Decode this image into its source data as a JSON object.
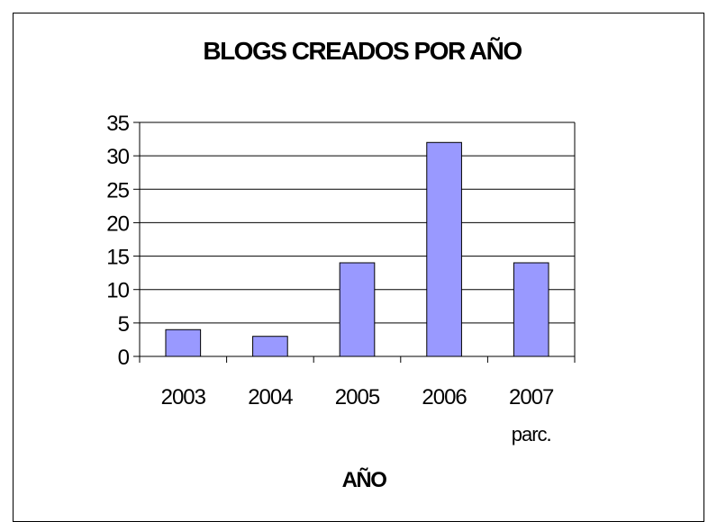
{
  "chart_data": {
    "type": "bar",
    "title": "BLOGS CREADOS POR AÑO",
    "xlabel": "AÑO",
    "ylabel": "",
    "categories": [
      "2003",
      "2004",
      "2005",
      "2006",
      "2007"
    ],
    "category_sublabels": [
      "",
      "",
      "",
      "",
      "parc."
    ],
    "values": [
      4,
      3,
      14,
      32,
      14
    ],
    "ylim": [
      0,
      35
    ],
    "yticks": [
      "0",
      "5",
      "10",
      "15",
      "20",
      "25",
      "30",
      "35"
    ],
    "grid": true,
    "legend": "none",
    "bar_color": "#9999ff",
    "bar_border": "#000000"
  }
}
